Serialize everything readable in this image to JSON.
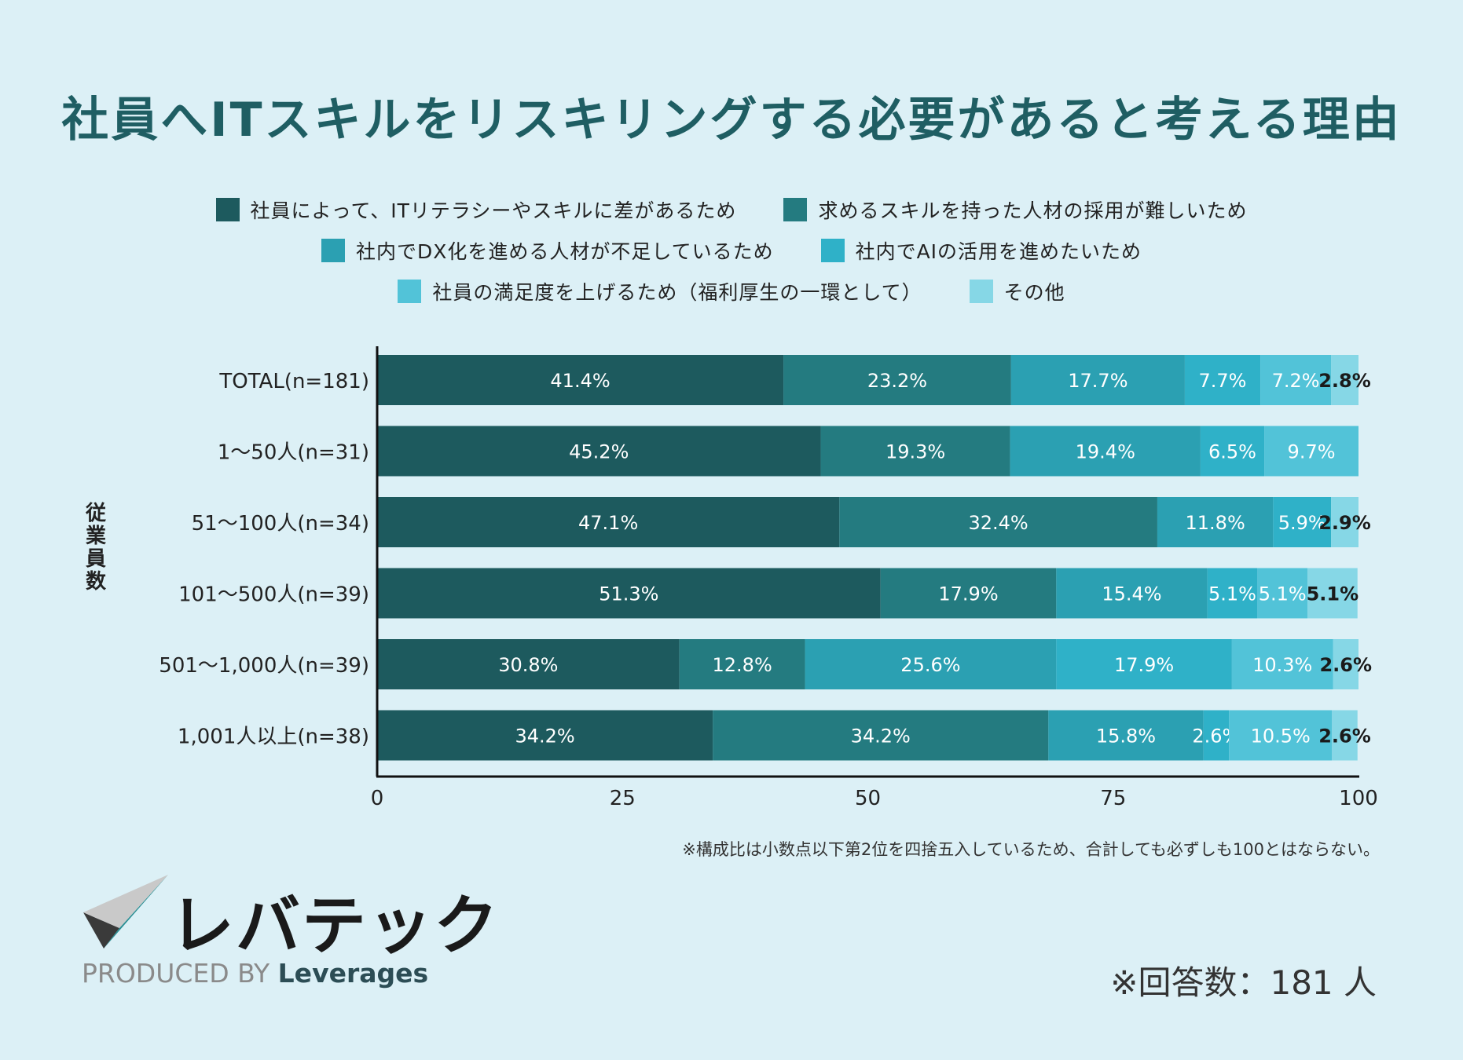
{
  "title": "社員へITスキルをリスキリングする必要があると考える理由",
  "legend": [
    {
      "label": "社員によって、ITリテラシーやスキルに差があるため",
      "color": "#1d5a5e"
    },
    {
      "label": "求めるスキルを持った人材の採用が難しいため",
      "color": "#247b80"
    },
    {
      "label": "社内でDX化を進める人材が不足しているため",
      "color": "#2ba0b2"
    },
    {
      "label": "社内でAIの活用を進めたいため",
      "color": "#2fb1c8"
    },
    {
      "label": "社員の満足度を上げるため（福利厚生の一環として）",
      "color": "#52c3d8"
    },
    {
      "label": "その他",
      "color": "#86d7e6"
    }
  ],
  "axis_title": "従業員数",
  "chart_data": {
    "type": "bar",
    "orientation": "horizontal",
    "stacked": true,
    "categories": [
      "TOTAL(n=181)",
      "1〜50人(n=31)",
      "51〜100人(n=34)",
      "101〜500人(n=39)",
      "501〜1,000人(n=39)",
      "1,001人以上(n=38)"
    ],
    "series": [
      {
        "name": "社員によって、ITリテラシーやスキルに差があるため",
        "values": [
          41.4,
          45.2,
          47.1,
          51.3,
          30.8,
          34.2
        ]
      },
      {
        "name": "求めるスキルを持った人材の採用が難しいため",
        "values": [
          23.2,
          19.3,
          32.4,
          17.9,
          12.8,
          34.2
        ]
      },
      {
        "name": "社内でDX化を進める人材が不足しているため",
        "values": [
          17.7,
          19.4,
          11.8,
          15.4,
          25.6,
          15.8
        ]
      },
      {
        "name": "社内でAIの活用を進めたいため",
        "values": [
          7.7,
          6.5,
          5.9,
          5.1,
          17.9,
          2.6
        ]
      },
      {
        "name": "社員の満足度を上げるため（福利厚生の一環として）",
        "values": [
          7.2,
          9.7,
          0,
          5.1,
          10.3,
          10.5
        ]
      },
      {
        "name": "その他",
        "values": [
          2.8,
          0,
          2.9,
          5.1,
          2.6,
          2.6
        ]
      }
    ],
    "xlim": [
      0,
      100
    ],
    "xticks": [
      "0",
      "25",
      "50",
      "75",
      "100"
    ],
    "value_suffix": "%",
    "ylabel": "従業員数"
  },
  "footnote": "※構成比は小数点以下第2位を四捨五入しているため、合計しても必ずしも100とはならない。",
  "respondents": "※回答数：181 人",
  "brand": {
    "logo_text": "レバテック",
    "produced_by": "PRODUCED BY",
    "company": "Leverages"
  }
}
